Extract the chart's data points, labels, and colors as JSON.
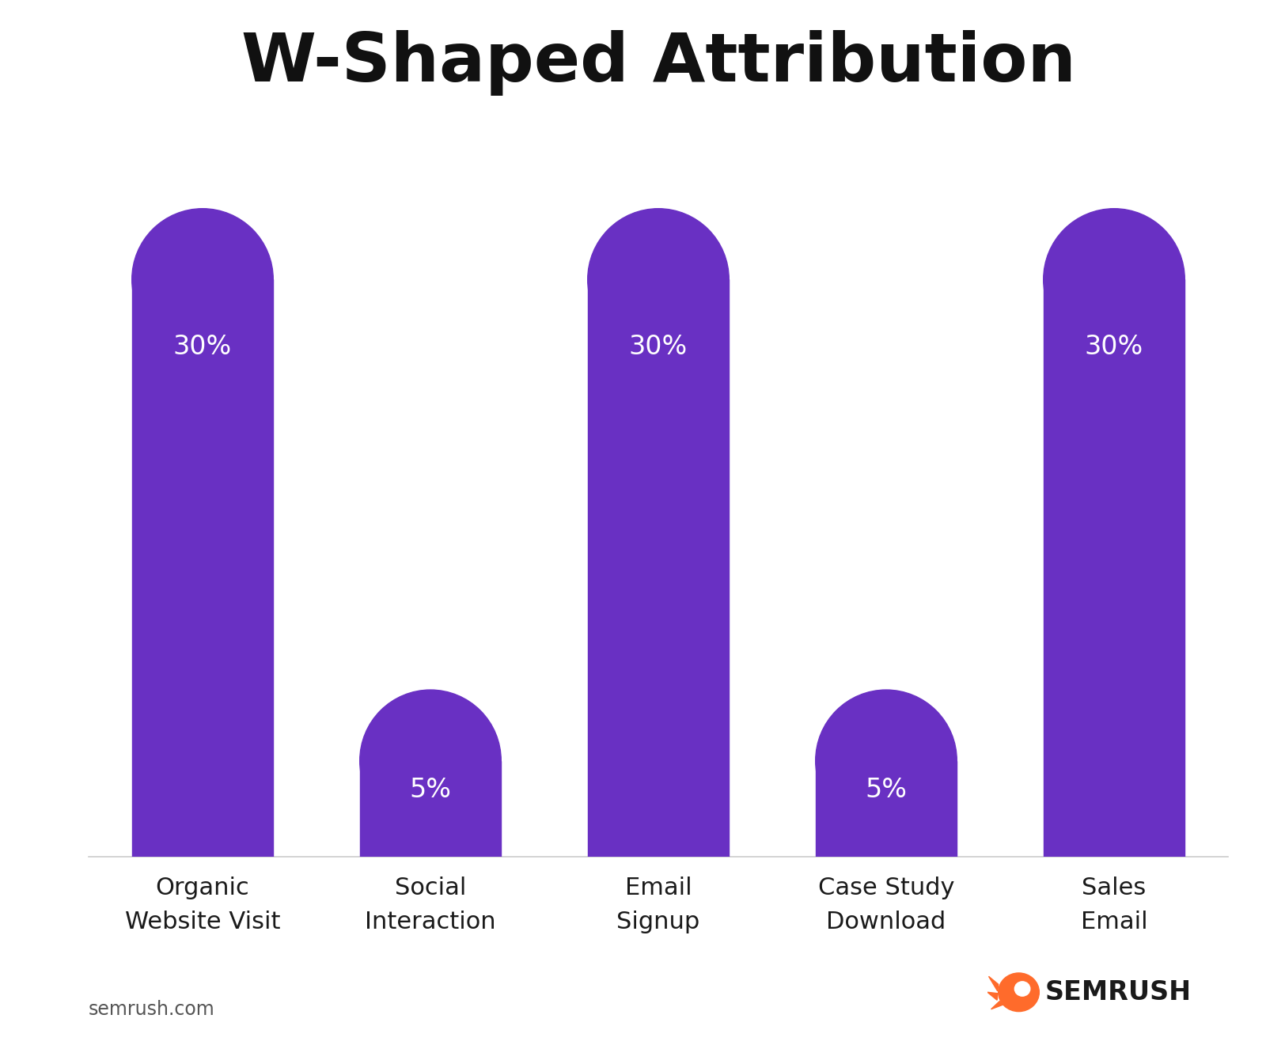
{
  "title": "W-Shaped Attribution",
  "categories": [
    "Organic\nWebsite Visit",
    "Social\nInteraction",
    "Email\nSignup",
    "Case Study\nDownload",
    "Sales\nEmail"
  ],
  "values": [
    30,
    5,
    30,
    5,
    30
  ],
  "bar_color": "#6930C3",
  "label_color": "#ffffff",
  "title_fontsize": 62,
  "label_fontsize": 24,
  "tick_fontsize": 22,
  "background_color": "#ffffff",
  "bar_width": 0.62,
  "ylim": [
    0,
    38
  ],
  "watermark": "semrush.com",
  "semrush_text": "SEMRUSH",
  "semrush_color": "#1a1a1a",
  "semrush_icon_color": "#FF6B2B"
}
